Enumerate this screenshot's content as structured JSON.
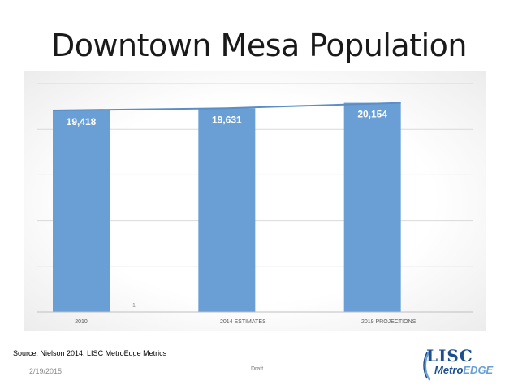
{
  "slide": {
    "title": "Downtown Mesa Population",
    "source": "Source: Nielson 2014, LISC MetroEdge Metrics",
    "date": "2/19/2015",
    "draft_label": "Draft"
  },
  "logo": {
    "line1": "LISC",
    "line2_a": "Metro",
    "line2_b": "EDGE"
  },
  "colors": {
    "bar": "#6a9fd6",
    "trend_line": "#5b8ec7",
    "grid": "#d9d9d9",
    "logo": "#1d4f8f"
  },
  "chart_data": {
    "type": "bar",
    "categories": [
      "2010",
      "2014 ESTIMATES",
      "2019 PROJECTIONS"
    ],
    "values": [
      19418,
      19631,
      20154
    ],
    "data_labels": [
      "19,418",
      "19,631",
      "20,154"
    ],
    "overlay": {
      "type": "line",
      "values": [
        19418,
        19631,
        20154
      ]
    },
    "extra_marker": {
      "label": "1",
      "category_index": 0
    },
    "ylim": [
      0,
      22000
    ],
    "grid": true,
    "y_tick_labels_visible": false,
    "title": "",
    "xlabel": "",
    "ylabel": ""
  }
}
